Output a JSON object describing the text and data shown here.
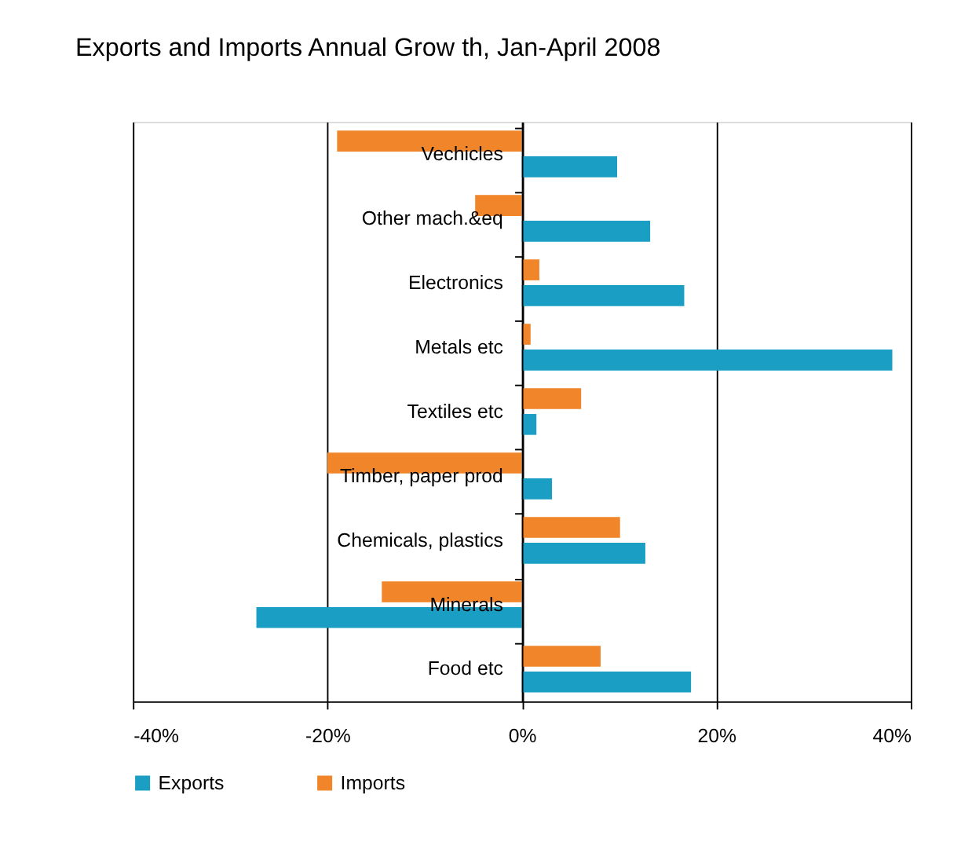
{
  "chart_data": {
    "type": "bar",
    "orientation": "horizontal",
    "title": "Exports and Imports Annual Grow th, Jan-April 2008",
    "categories": [
      "Vechicles",
      "Other mach.&eq",
      "Electronics",
      "Metals etc",
      "Textiles etc",
      "Timber, paper prod",
      "Chemicals, plastics",
      "Minerals",
      "Food etc"
    ],
    "series": [
      {
        "name": "Exports",
        "color": "#1a9ec4",
        "values": [
          9.8,
          13.2,
          16.7,
          38.1,
          1.5,
          3.1,
          12.7,
          -27.3,
          17.4
        ]
      },
      {
        "name": "Imports",
        "color": "#f0852a",
        "values": [
          -19.0,
          -4.8,
          1.8,
          0.9,
          6.1,
          -20.0,
          10.1,
          -14.4,
          8.1
        ]
      }
    ],
    "xlim": [
      -40,
      40
    ],
    "xticks": [
      {
        "value": -40,
        "label": "-40%"
      },
      {
        "value": -20,
        "label": "-20%"
      },
      {
        "value": 0,
        "label": "0%"
      },
      {
        "value": 20,
        "label": "20%"
      },
      {
        "value": 40,
        "label": "40%"
      }
    ],
    "grid": "x",
    "legend": "bottom"
  }
}
